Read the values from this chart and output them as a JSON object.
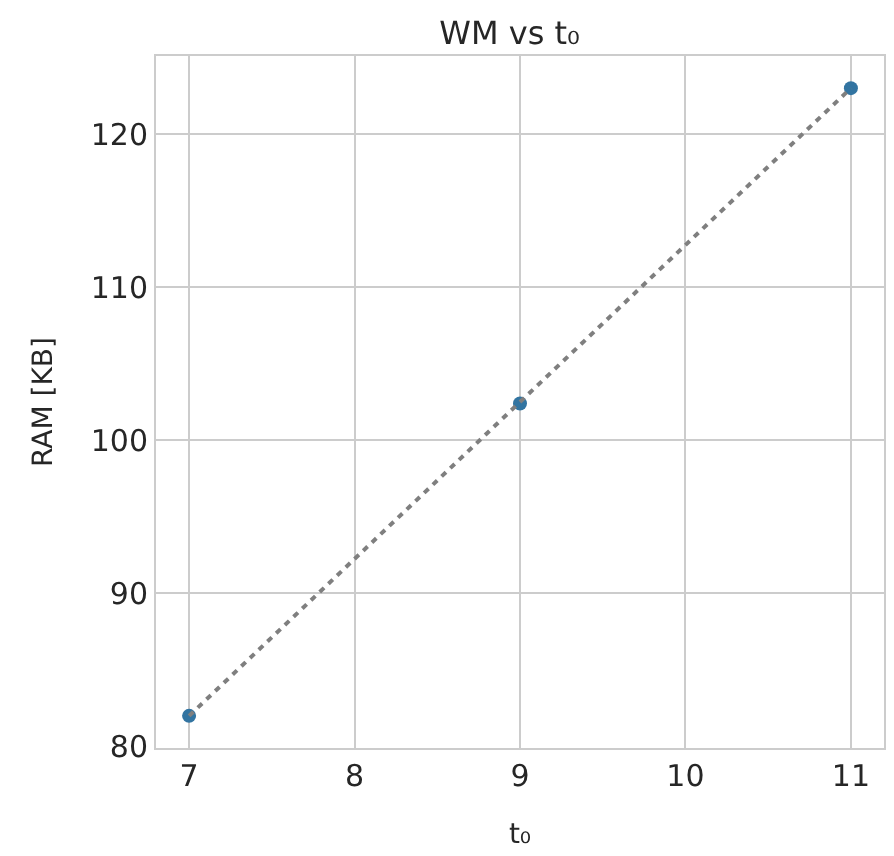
{
  "chart_data": {
    "type": "scatter",
    "title": "WM vs t₀",
    "xlabel": "t₀",
    "ylabel": "RAM [KB]",
    "x": [
      7,
      9,
      11
    ],
    "series": [
      {
        "color": "#3274a1",
        "values": [
          82.0,
          102.4,
          123.0
        ],
        "marker": "circle"
      },
      {
        "type": "line",
        "x": [
          7,
          11
        ],
        "color": "#7f7f7f",
        "values": [
          82.0,
          123.0
        ],
        "marker": "none",
        "line_style": "dotted"
      }
    ],
    "xlim": [
      6.8,
      11.2
    ],
    "xticks": [
      7,
      8,
      9,
      10,
      11
    ],
    "ylim": [
      79.9,
      125.1
    ],
    "yticks": [
      80,
      90,
      100,
      110,
      120
    ],
    "grid": true
  }
}
